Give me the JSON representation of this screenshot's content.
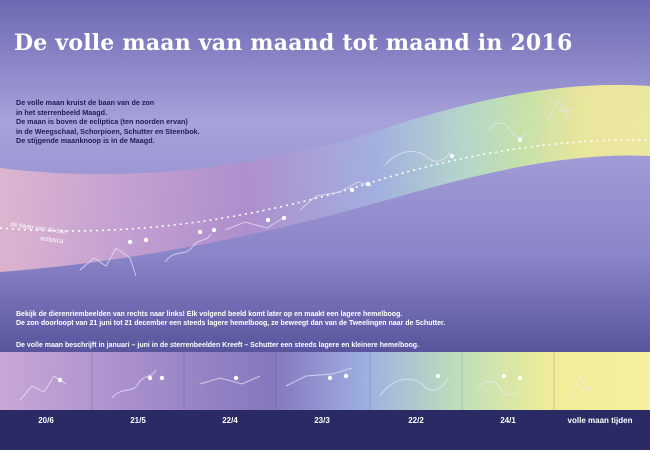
{
  "title": "De volle maan van maand tot maand in 2016",
  "intro_lines": [
    "De volle maan kruist de baan van de zon",
    "in het sterrenbeeld Maagd.",
    "De maan is boven de ecliptica (ten noorden ervan)",
    "in de Weegschaal, Schorpioen, Schutter en Steenbok.",
    "De stijgende maanknoop is in de Maagd."
  ],
  "ecliptic_label": "de baan van de zon",
  "ecliptic_label_2": "ecliptica",
  "note_lines": [
    "Bekijk de dierenriembeelden van rechts naar links! Elk volgend beeld komt later op en maakt een lagere hemelboog.",
    "De zon doorloopt van 21 juni tot 21 december een steeds lagere hemelboog, ze beweegt dan van de Tweelingen naar de Schutter."
  ],
  "note_bottom": "De volle maan beschrijft in januari – juni in de sterrenbeelden Kreeft – Schutter een steeds lagere en kleinere hemelboog.",
  "dates": [
    "20/6",
    "21/5",
    "22/4",
    "23/3",
    "22/2",
    "24/1",
    "volle maan tijden"
  ],
  "colors": {
    "sky_top": "#7f7cc0",
    "sky_mid": "#a9a3d9",
    "sky_bottom": "#3d3b86",
    "band_pink": "#e3b8cf",
    "band_purple": "#b394cd",
    "band_blue": "#a4b6e0",
    "band_green": "#c3e3a7",
    "band_yellow": "#f1ec97",
    "bottom_bar": "#2a2a64"
  }
}
